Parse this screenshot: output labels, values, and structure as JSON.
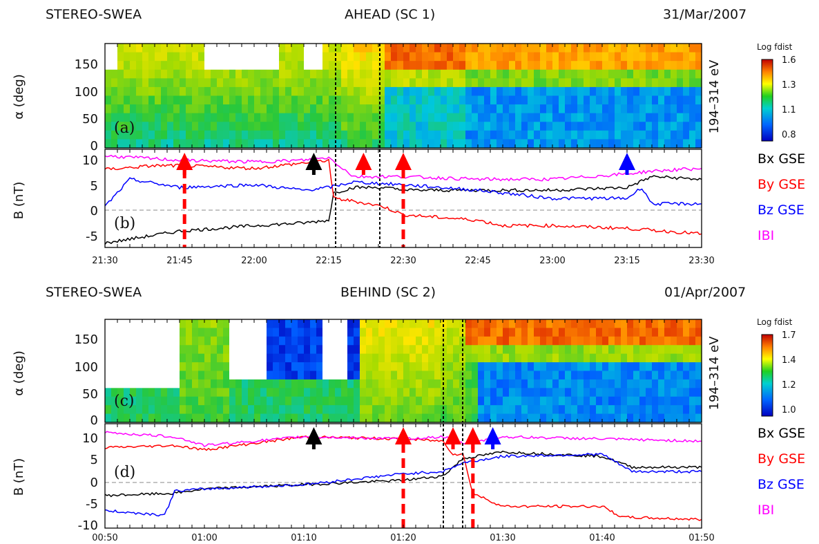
{
  "chart_data": [
    {
      "type": "heatmap",
      "panel": "(a)",
      "header": {
        "left": "STEREO-SWEA",
        "center": "AHEAD (SC 1)",
        "right": "31/Mar/2007"
      },
      "ylabel": "α (deg)",
      "right_label": "194–314 eV",
      "yticks": [
        "0",
        "50",
        "100",
        "150"
      ],
      "ylim": [
        0,
        180
      ],
      "colorbar": {
        "title": "Log fdist",
        "ticks": [
          "0.8",
          "1.1",
          "1.3",
          "1.6"
        ],
        "range": [
          0.8,
          1.6
        ]
      },
      "vlines_dotted": [
        "22:16",
        "22:26"
      ],
      "xrange": [
        "21:30",
        "23:30"
      ]
    },
    {
      "type": "line",
      "panel": "(b)",
      "ylabel": "B (nT)",
      "ylim": [
        -7,
        11
      ],
      "yticks": [
        "-5",
        "0",
        "5",
        "10"
      ],
      "xticks": [
        "21:30",
        "21:45",
        "22:00",
        "22:15",
        "22:30",
        "22:45",
        "23:00",
        "23:15",
        "23:30"
      ],
      "legend": [
        {
          "name": "Bx GSE",
          "color": "#000000"
        },
        {
          "name": "By GSE",
          "color": "#ff0000"
        },
        {
          "name": "Bz GSE",
          "color": "#0000ff"
        },
        {
          "name": "IBI",
          "color": "#ff00ff"
        }
      ],
      "arrows": [
        {
          "time": "21:46",
          "color": "#ff0000",
          "dashed_line": true
        },
        {
          "time": "22:12",
          "color": "#000000",
          "dashed_line": false
        },
        {
          "time": "22:22",
          "color": "#ff0000",
          "dashed_line": false
        },
        {
          "time": "22:30",
          "color": "#ff0000",
          "dashed_line": true
        },
        {
          "time": "23:15",
          "color": "#0000ff",
          "dashed_line": false
        }
      ],
      "series": [
        {
          "name": "Bx GSE",
          "x": [
            "21:30",
            "21:45",
            "22:00",
            "22:10",
            "22:15",
            "22:16",
            "22:20",
            "22:26",
            "22:30",
            "22:45",
            "23:00",
            "23:15",
            "23:20",
            "23:30"
          ],
          "values": [
            -6.2,
            -4,
            -3,
            -2.5,
            -2,
            3,
            4,
            4,
            3.5,
            3.5,
            3.5,
            4,
            6,
            5.5
          ]
        },
        {
          "name": "By GSE",
          "x": [
            "21:30",
            "21:40",
            "21:45",
            "22:00",
            "22:10",
            "22:15",
            "22:16",
            "22:20",
            "22:26",
            "22:30",
            "22:45",
            "22:50",
            "23:00",
            "23:15",
            "23:30"
          ],
          "values": [
            7.3,
            8,
            8,
            7.5,
            8.5,
            9,
            2,
            1.5,
            0.5,
            -1,
            -2,
            -3,
            -3,
            -3.5,
            -4.5
          ]
        },
        {
          "name": "Bz GSE",
          "x": [
            "21:30",
            "21:35",
            "21:45",
            "22:00",
            "22:10",
            "22:15",
            "22:20",
            "22:30",
            "22:45",
            "23:00",
            "23:15",
            "23:18",
            "23:20",
            "23:30"
          ],
          "values": [
            0.5,
            5.5,
            4,
            4.5,
            3.5,
            4,
            5,
            4.5,
            3.5,
            2,
            2,
            4,
            1,
            1
          ]
        },
        {
          "name": "IBI",
          "x": [
            "21:30",
            "21:45",
            "22:00",
            "22:10",
            "22:15",
            "22:20",
            "22:30",
            "22:45",
            "23:00",
            "23:15",
            "23:20",
            "23:30"
          ],
          "values": [
            9.8,
            9,
            8.7,
            9,
            9.5,
            6,
            6,
            5.5,
            5.5,
            6.5,
            7,
            7.5
          ]
        }
      ]
    },
    {
      "type": "heatmap",
      "panel": "(c)",
      "header": {
        "left": "STEREO-SWEA",
        "center": "BEHIND (SC 2)",
        "right": "01/Apr/2007"
      },
      "ylabel": "α (deg)",
      "right_label": "194–314 eV",
      "yticks": [
        "0",
        "50",
        "100",
        "150"
      ],
      "ylim": [
        0,
        180
      ],
      "colorbar": {
        "title": "Log fdist",
        "ticks": [
          "1.0",
          "1.2",
          "1.4",
          "1.7"
        ],
        "range": [
          1.0,
          1.7
        ]
      },
      "vlines_dotted": [
        "01:24",
        "01:26"
      ],
      "xrange": [
        "00:50",
        "01:50"
      ]
    },
    {
      "type": "line",
      "panel": "(d)",
      "ylabel": "B (nT)",
      "ylim": [
        -11,
        13
      ],
      "yticks": [
        "-10",
        "-5",
        "0",
        "5",
        "10"
      ],
      "xticks": [
        "00:50",
        "01:00",
        "01:10",
        "01:20",
        "01:30",
        "01:40",
        "01:50"
      ],
      "legend": [
        {
          "name": "Bx GSE",
          "color": "#000000"
        },
        {
          "name": "By GSE",
          "color": "#ff0000"
        },
        {
          "name": "Bz GSE",
          "color": "#0000ff"
        },
        {
          "name": "IBI",
          "color": "#ff00ff"
        }
      ],
      "arrows": [
        {
          "time": "01:11",
          "color": "#000000",
          "dashed_line": false
        },
        {
          "time": "01:20",
          "color": "#ff0000",
          "dashed_line": true
        },
        {
          "time": "01:25",
          "color": "#ff0000",
          "dashed_line": false
        },
        {
          "time": "01:27",
          "color": "#ff0000",
          "dashed_line": true
        },
        {
          "time": "01:29",
          "color": "#0000ff",
          "dashed_line": false
        }
      ],
      "series": [
        {
          "name": "Bx GSE",
          "x": [
            "00:50",
            "00:57",
            "01:00",
            "01:10",
            "01:20",
            "01:24",
            "01:26",
            "01:30",
            "01:40",
            "01:43",
            "01:50"
          ],
          "values": [
            -3.5,
            -3,
            -2,
            -1,
            0,
            1,
            5,
            6.5,
            5.5,
            3,
            3
          ]
        },
        {
          "name": "By GSE",
          "x": [
            "00:50",
            "00:57",
            "01:00",
            "01:10",
            "01:20",
            "01:24",
            "01:25",
            "01:26",
            "01:27",
            "01:30",
            "01:40",
            "01:42",
            "01:50"
          ],
          "values": [
            7.5,
            8,
            7,
            10,
            9.5,
            9,
            6,
            6,
            -3,
            -6,
            -6,
            -8.5,
            -9
          ]
        },
        {
          "name": "Bz GSE",
          "x": [
            "00:50",
            "00:56",
            "00:57",
            "01:00",
            "01:10",
            "01:20",
            "01:24",
            "01:26",
            "01:30",
            "01:40",
            "01:43",
            "01:50"
          ],
          "values": [
            -7,
            -8,
            -2.5,
            -2,
            -1,
            1.5,
            2,
            4,
            5.5,
            6,
            2,
            2
          ]
        },
        {
          "name": "IBI",
          "x": [
            "00:50",
            "00:57",
            "01:00",
            "01:10",
            "01:20",
            "01:24",
            "01:26",
            "01:30",
            "01:40",
            "01:50"
          ],
          "values": [
            11,
            10,
            8,
            10,
            9.5,
            10,
            8.5,
            10,
            9.5,
            9
          ]
        }
      ]
    }
  ]
}
